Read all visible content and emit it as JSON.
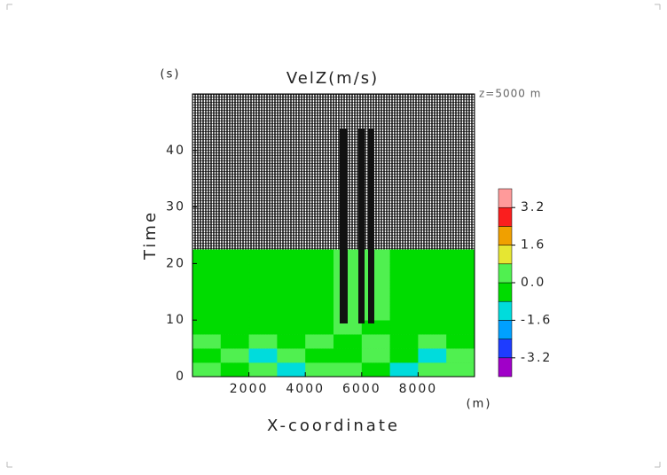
{
  "chart_data": {
    "type": "heatmap",
    "title": "VelZ(m/s)",
    "subtitle": "z=5000 m",
    "x_label": "X-coordinate",
    "x_unit": "(m)",
    "y_label": "Time",
    "y_unit": "(s)",
    "xlim": [
      0,
      10000
    ],
    "ylim": [
      0,
      50
    ],
    "xticks": [
      2000,
      4000,
      6000,
      8000
    ],
    "yticks": [
      0,
      10,
      20,
      30,
      40
    ],
    "x": [
      500,
      1500,
      2500,
      3500,
      4500,
      5500,
      6500,
      7500,
      8500,
      9500
    ],
    "y": [
      1.25,
      3.75,
      6.25,
      8.75,
      11.25,
      13.75,
      16.25,
      18.75,
      21.25
    ],
    "z": [
      [
        0.3,
        -0.4,
        0.2,
        -0.9,
        0.4,
        0.5,
        -0.3,
        -0.9,
        0.2,
        0.4
      ],
      [
        -0.3,
        0.2,
        -0.9,
        0.3,
        -0.2,
        -0.3,
        0.3,
        -0.2,
        -1.0,
        0.2
      ],
      [
        0.3,
        -0.3,
        0.3,
        -0.3,
        0.3,
        -0.3,
        0.3,
        -0.3,
        0.3,
        -0.3
      ],
      [
        -0.3,
        -0.3,
        -0.3,
        -0.3,
        -0.3,
        0.3,
        -0.3,
        -0.3,
        -0.3,
        -0.3
      ],
      [
        -0.3,
        -0.3,
        -0.3,
        -0.3,
        -0.3,
        0.3,
        0.3,
        -0.3,
        -0.3,
        -0.3
      ],
      [
        -0.3,
        -0.3,
        -0.3,
        -0.3,
        -0.3,
        0.3,
        0.3,
        -0.3,
        -0.3,
        -0.3
      ],
      [
        -0.3,
        -0.3,
        -0.3,
        -0.3,
        -0.3,
        0.3,
        0.3,
        -0.3,
        -0.3,
        -0.3
      ],
      [
        -0.3,
        -0.3,
        -0.3,
        -0.3,
        -0.3,
        0.3,
        0.3,
        -0.3,
        -0.3,
        -0.3
      ],
      [
        -0.3,
        -0.3,
        -0.3,
        -0.3,
        -0.3,
        0.3,
        0.3,
        -0.3,
        -0.3,
        -0.3
      ]
    ],
    "levels": [
      -3.2,
      -2.4,
      -1.6,
      -0.8,
      0,
      0.8,
      1.6,
      2.4,
      3.2
    ],
    "colors": [
      "#a000c8",
      "#1e3cff",
      "#00a0ff",
      "#00dcdc",
      "#00dc00",
      "#50f050",
      "#e6e632",
      "#f0a000",
      "#fa1e1e",
      "#ff9a9a"
    ],
    "colorbar_ticks": [
      3.2,
      1.6,
      {
        "value": 0,
        "label": "0.0"
      },
      -1.6,
      -3.2
    ]
  }
}
